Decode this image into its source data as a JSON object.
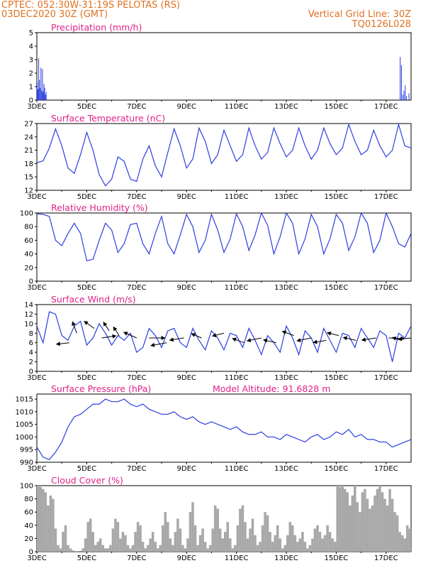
{
  "header": {
    "line1": "CPTEC:   052:30W-31:19S   PELOTAS (RS)",
    "line2": "03DEC2020  30Z  (GMT)",
    "grid_note": "Vertical Grid Line: 30Z",
    "code": "TQ0126L028"
  },
  "colors": {
    "header": "#e07020",
    "title": "#e0208a",
    "line": "#2a3ee0",
    "bar_precip": "#2a3ee0",
    "bar_cloud": "#a8a8a8",
    "arrow": "#000000"
  },
  "x_axis": {
    "labels": [
      "3DEC",
      "5DEC",
      "7DEC",
      "9DEC",
      "11DEC",
      "13DEC",
      "15DEC",
      "17DEC"
    ],
    "domain": [
      0,
      15
    ]
  },
  "chart_data": [
    {
      "type": "bar",
      "title": "Precipitation (mm/h)",
      "ylim": [
        0,
        5
      ],
      "yticks": [
        0,
        1,
        2,
        3,
        4,
        5
      ],
      "bar_width": 0.02,
      "x": [
        0.0,
        0.03,
        0.06,
        0.09,
        0.12,
        0.15,
        0.18,
        0.21,
        0.24,
        0.27,
        0.3,
        0.33,
        0.36,
        14.55,
        14.6,
        14.65,
        14.7,
        14.75,
        14.8,
        14.9,
        15.0,
        15.05,
        15.1,
        15.2,
        15.3,
        15.35,
        15.4,
        15.45,
        15.5,
        15.55,
        15.6,
        15.7
      ],
      "values": [
        1.3,
        0.8,
        3.1,
        1.5,
        0.9,
        2.4,
        0.7,
        2.3,
        0.6,
        1.2,
        0.9,
        0.4,
        0.6,
        3.2,
        2.6,
        0.4,
        0.7,
        1.1,
        0.3,
        0.5,
        0.8,
        0.3,
        0.6,
        0.7,
        1.0,
        0.4,
        0.9,
        0.5,
        1.1,
        0.3,
        0.6,
        0.4
      ]
    },
    {
      "type": "line",
      "title": "Surface Temperature (nC)",
      "ylim": [
        12,
        27
      ],
      "yticks": [
        12,
        15,
        18,
        21,
        24,
        27
      ],
      "x": [
        0,
        0.25,
        0.5,
        0.75,
        1,
        1.25,
        1.5,
        1.75,
        2,
        2.25,
        2.5,
        2.75,
        3,
        3.25,
        3.5,
        3.75,
        4,
        4.25,
        4.5,
        4.75,
        5,
        5.25,
        5.5,
        5.75,
        6,
        6.25,
        6.5,
        6.75,
        7,
        7.25,
        7.5,
        7.75,
        8,
        8.25,
        8.5,
        8.75,
        9,
        9.25,
        9.5,
        9.75,
        10,
        10.25,
        10.5,
        10.75,
        11,
        11.25,
        11.5,
        11.75,
        12,
        12.25,
        12.5,
        12.75,
        13,
        13.25,
        13.5,
        13.75,
        14,
        14.25,
        14.5,
        14.75,
        15
      ],
      "values": [
        18.2,
        18.6,
        21.5,
        25.8,
        22.0,
        17.0,
        15.8,
        20.0,
        25.0,
        21.0,
        15.5,
        13.0,
        14.5,
        19.5,
        18.5,
        14.5,
        14.0,
        19.0,
        22.0,
        17.5,
        15.0,
        20.5,
        25.8,
        22.0,
        17.0,
        19.0,
        26.0,
        23.0,
        18.0,
        20.0,
        25.5,
        22.0,
        18.5,
        20.0,
        26.0,
        22.0,
        19.0,
        20.5,
        26.0,
        22.5,
        19.5,
        21.0,
        26.0,
        22.0,
        19.0,
        21.0,
        26.0,
        22.5,
        20.0,
        21.5,
        26.8,
        23.0,
        20.0,
        21.0,
        25.5,
        22.0,
        19.5,
        21.0,
        26.8,
        22.0,
        21.5
      ]
    },
    {
      "type": "line",
      "title": "Relative Humidity (%)",
      "ylim": [
        0,
        100
      ],
      "yticks": [
        0,
        20,
        40,
        60,
        80,
        100
      ],
      "x": [
        0,
        0.25,
        0.5,
        0.75,
        1,
        1.25,
        1.5,
        1.75,
        2,
        2.25,
        2.5,
        2.75,
        3,
        3.25,
        3.5,
        3.75,
        4,
        4.25,
        4.5,
        4.75,
        5,
        5.25,
        5.5,
        5.75,
        6,
        6.25,
        6.5,
        6.75,
        7,
        7.25,
        7.5,
        7.75,
        8,
        8.25,
        8.5,
        8.75,
        9,
        9.25,
        9.5,
        9.75,
        10,
        10.25,
        10.5,
        10.75,
        11,
        11.25,
        11.5,
        11.75,
        12,
        12.25,
        12.5,
        12.75,
        13,
        13.25,
        13.5,
        13.75,
        14,
        14.25,
        14.5,
        14.75,
        15
      ],
      "values": [
        99,
        98,
        95,
        60,
        52,
        70,
        85,
        70,
        30,
        32,
        60,
        85,
        75,
        42,
        55,
        83,
        85,
        55,
        40,
        70,
        95,
        55,
        40,
        68,
        98,
        80,
        42,
        60,
        98,
        75,
        42,
        62,
        99,
        80,
        45,
        68,
        100,
        82,
        40,
        65,
        100,
        85,
        40,
        62,
        98,
        80,
        40,
        62,
        98,
        85,
        45,
        65,
        100,
        85,
        42,
        60,
        100,
        80,
        55,
        50,
        70
      ]
    },
    {
      "type": "line",
      "title": "Surface Wind (m/s)",
      "ylim": [
        0,
        14
      ],
      "yticks": [
        0,
        2,
        4,
        6,
        8,
        10,
        12,
        14
      ],
      "x": [
        0,
        0.25,
        0.5,
        0.75,
        1,
        1.25,
        1.5,
        1.75,
        2,
        2.25,
        2.5,
        2.75,
        3,
        3.25,
        3.5,
        3.75,
        4,
        4.25,
        4.5,
        4.75,
        5,
        5.25,
        5.5,
        5.75,
        6,
        6.25,
        6.5,
        6.75,
        7,
        7.25,
        7.5,
        7.75,
        8,
        8.25,
        8.5,
        8.75,
        9,
        9.25,
        9.5,
        9.75,
        10,
        10.25,
        10.5,
        10.75,
        11,
        11.25,
        11.5,
        11.75,
        12,
        12.25,
        12.5,
        12.75,
        13,
        13.25,
        13.5,
        13.75,
        14,
        14.25,
        14.5,
        14.75,
        15
      ],
      "values": [
        9.5,
        6.0,
        12.5,
        12.0,
        7.5,
        6.5,
        9.5,
        10.5,
        5.5,
        7.0,
        10.0,
        8.0,
        5.5,
        7.5,
        6.5,
        8.0,
        4.0,
        5.0,
        9.0,
        7.5,
        5.0,
        8.5,
        9.0,
        6.0,
        5.0,
        9.0,
        6.5,
        4.5,
        8.5,
        7.0,
        4.5,
        8.0,
        7.5,
        5.0,
        9.0,
        6.5,
        3.5,
        7.5,
        6.0,
        4.0,
        9.5,
        7.0,
        3.5,
        8.5,
        7.0,
        4.0,
        9.0,
        6.5,
        4.0,
        8.0,
        7.5,
        5.0,
        9.0,
        7.0,
        5.0,
        8.5,
        7.5,
        2.0,
        8.0,
        7.0,
        9.5
      ],
      "arrows": [
        {
          "x": 1.3,
          "y": 6.0,
          "dx": -18,
          "dy": 2
        },
        {
          "x": 1.6,
          "y": 8.0,
          "dx": -6,
          "dy": -16
        },
        {
          "x": 2.3,
          "y": 9.0,
          "dx": -14,
          "dy": -10
        },
        {
          "x": 2.6,
          "y": 7.0,
          "dx": 20,
          "dy": -3
        },
        {
          "x": 2.9,
          "y": 8.5,
          "dx": -8,
          "dy": -12
        },
        {
          "x": 3.3,
          "y": 7.5,
          "dx": -8,
          "dy": -12
        },
        {
          "x": 4.0,
          "y": 7.0,
          "dx": -18,
          "dy": -8
        },
        {
          "x": 4.5,
          "y": 7.0,
          "dx": 22,
          "dy": 0
        },
        {
          "x": 5.2,
          "y": 6.0,
          "dx": -22,
          "dy": 4
        },
        {
          "x": 5.9,
          "y": 7.0,
          "dx": -20,
          "dy": 3
        },
        {
          "x": 6.6,
          "y": 7.0,
          "dx": -14,
          "dy": -6
        },
        {
          "x": 7.5,
          "y": 8.0,
          "dx": -16,
          "dy": 4
        },
        {
          "x": 8.3,
          "y": 6.0,
          "dx": -16,
          "dy": -6
        },
        {
          "x": 9.0,
          "y": 7.0,
          "dx": -20,
          "dy": 4
        },
        {
          "x": 9.6,
          "y": 6.0,
          "dx": -18,
          "dy": -4
        },
        {
          "x": 10.3,
          "y": 7.5,
          "dx": -16,
          "dy": -6
        },
        {
          "x": 11.0,
          "y": 7.0,
          "dx": -20,
          "dy": 4
        },
        {
          "x": 11.6,
          "y": 6.5,
          "dx": -18,
          "dy": 3
        },
        {
          "x": 12.1,
          "y": 7.5,
          "dx": -16,
          "dy": -4
        },
        {
          "x": 12.8,
          "y": 6.5,
          "dx": -18,
          "dy": -4
        },
        {
          "x": 13.6,
          "y": 7.0,
          "dx": -20,
          "dy": 3
        },
        {
          "x": 14.1,
          "y": 7.0,
          "dx": 22,
          "dy": 1
        },
        {
          "x": 14.6,
          "y": 6.5,
          "dx": -12,
          "dy": -4
        },
        {
          "x": 15.0,
          "y": 7.0,
          "dx": -18,
          "dy": 2
        }
      ]
    },
    {
      "type": "line",
      "title": "Surface Pressure (hPa)",
      "annotation": "Model Altitude: 91.6828 m",
      "ylim": [
        990,
        1017
      ],
      "yticks": [
        990,
        995,
        1000,
        1005,
        1010,
        1015
      ],
      "x": [
        0,
        0.25,
        0.5,
        0.75,
        1,
        1.25,
        1.5,
        1.75,
        2,
        2.25,
        2.5,
        2.75,
        3,
        3.25,
        3.5,
        3.75,
        4,
        4.25,
        4.5,
        4.75,
        5,
        5.25,
        5.5,
        5.75,
        6,
        6.25,
        6.5,
        6.75,
        7,
        7.25,
        7.5,
        7.75,
        8,
        8.25,
        8.5,
        8.75,
        9,
        9.25,
        9.5,
        9.75,
        10,
        10.25,
        10.5,
        10.75,
        11,
        11.25,
        11.5,
        11.75,
        12,
        12.25,
        12.5,
        12.75,
        13,
        13.25,
        13.5,
        13.75,
        14,
        14.25,
        14.5,
        14.75,
        15
      ],
      "values": [
        996,
        992,
        991,
        994,
        998,
        1004,
        1008,
        1009,
        1011,
        1013,
        1013,
        1015,
        1014,
        1014,
        1015,
        1013,
        1012,
        1013,
        1011,
        1010,
        1009,
        1009,
        1010,
        1008,
        1007,
        1008,
        1006,
        1005,
        1006,
        1005,
        1004,
        1003,
        1004,
        1002,
        1001,
        1001,
        1002,
        1000,
        1000,
        999,
        1001,
        1000,
        999,
        998,
        1000,
        1001,
        999,
        1000,
        1002,
        1001,
        1003,
        1000,
        1001,
        999,
        999,
        998,
        998,
        996,
        997,
        998,
        999
      ]
    },
    {
      "type": "bar",
      "title": "Cloud Cover (%)",
      "ylim": [
        0,
        100
      ],
      "yticks": [
        0,
        20,
        40,
        60,
        80,
        100
      ],
      "bar_width": 0.1,
      "x": [
        0,
        0.1,
        0.2,
        0.3,
        0.4,
        0.5,
        0.6,
        0.7,
        0.8,
        0.9,
        1,
        1.1,
        1.2,
        1.3,
        1.4,
        1.5,
        1.6,
        1.7,
        1.8,
        1.9,
        2,
        2.1,
        2.2,
        2.3,
        2.4,
        2.5,
        2.6,
        2.7,
        2.8,
        2.9,
        3,
        3.1,
        3.2,
        3.3,
        3.4,
        3.5,
        3.6,
        3.7,
        3.8,
        3.9,
        4,
        4.1,
        4.2,
        4.3,
        4.4,
        4.5,
        4.6,
        4.7,
        4.8,
        4.9,
        5,
        5.1,
        5.2,
        5.3,
        5.4,
        5.5,
        5.6,
        5.7,
        5.8,
        5.9,
        6,
        6.1,
        6.2,
        6.3,
        6.4,
        6.5,
        6.6,
        6.7,
        6.8,
        6.9,
        7,
        7.1,
        7.2,
        7.3,
        7.4,
        7.5,
        7.6,
        7.7,
        7.8,
        7.9,
        8,
        8.1,
        8.2,
        8.3,
        8.4,
        8.5,
        8.6,
        8.7,
        8.8,
        8.9,
        9,
        9.1,
        9.2,
        9.3,
        9.4,
        9.5,
        9.6,
        9.7,
        9.8,
        9.9,
        10,
        10.1,
        10.2,
        10.3,
        10.4,
        10.5,
        10.6,
        10.7,
        10.8,
        10.9,
        11,
        11.1,
        11.2,
        11.3,
        11.4,
        11.5,
        11.6,
        11.7,
        11.8,
        11.9,
        12,
        12.1,
        12.2,
        12.3,
        12.4,
        12.5,
        12.6,
        12.7,
        12.8,
        12.9,
        13,
        13.1,
        13.2,
        13.3,
        13.4,
        13.5,
        13.6,
        13.7,
        13.8,
        13.9,
        14,
        14.1,
        14.2,
        14.3,
        14.4,
        14.5,
        14.6,
        14.7,
        14.8,
        14.9
      ],
      "values": [
        100,
        98,
        95,
        90,
        70,
        85,
        80,
        35,
        10,
        5,
        30,
        40,
        10,
        5,
        2,
        1,
        1,
        0,
        5,
        20,
        45,
        50,
        30,
        10,
        15,
        20,
        10,
        5,
        5,
        10,
        35,
        50,
        45,
        20,
        30,
        25,
        10,
        5,
        10,
        30,
        45,
        40,
        15,
        5,
        10,
        20,
        30,
        15,
        5,
        10,
        40,
        60,
        45,
        20,
        10,
        30,
        50,
        35,
        10,
        5,
        20,
        60,
        75,
        40,
        10,
        25,
        35,
        15,
        5,
        10,
        35,
        70,
        65,
        35,
        20,
        30,
        45,
        20,
        5,
        10,
        40,
        65,
        70,
        45,
        20,
        35,
        50,
        25,
        10,
        15,
        40,
        60,
        55,
        30,
        15,
        25,
        40,
        20,
        5,
        10,
        25,
        45,
        40,
        25,
        15,
        20,
        30,
        15,
        5,
        10,
        20,
        35,
        40,
        30,
        20,
        25,
        40,
        30,
        20,
        15,
        100,
        98,
        100,
        95,
        90,
        70,
        85,
        100,
        75,
        60,
        90,
        95,
        80,
        65,
        70,
        85,
        95,
        100,
        90,
        80,
        70,
        95,
        80,
        60,
        55,
        30,
        25,
        20,
        40,
        35
      ]
    }
  ]
}
